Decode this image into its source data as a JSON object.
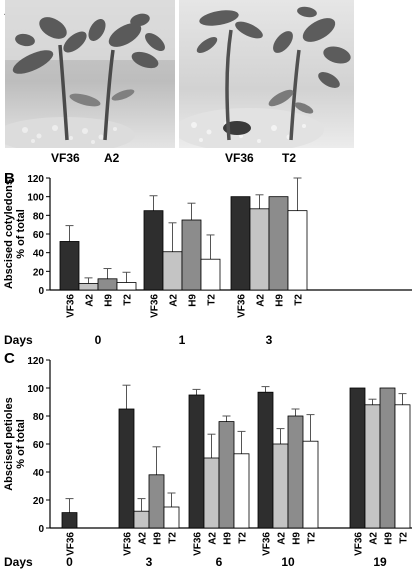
{
  "panels": {
    "A": {
      "letter": "A",
      "left_photo_labels": [
        "VF36",
        "A2"
      ],
      "right_photo_labels": [
        "VF36",
        "T2"
      ]
    },
    "B": {
      "letter": "B"
    },
    "C": {
      "letter": "C"
    }
  },
  "colors": {
    "VF36": "#2e2e2e",
    "A2": "#c4c4c4",
    "H9": "#8c8c8c",
    "T2": "#ffffff"
  },
  "chart_data": [
    {
      "type": "bar",
      "panel": "B",
      "ylabel": [
        "Abscised cotyledons",
        "% of total"
      ],
      "ylim": [
        0,
        120
      ],
      "yticks": [
        0,
        20,
        40,
        60,
        80,
        100,
        120
      ],
      "xlabel_prefix": "Days",
      "groups": [
        {
          "day": "0",
          "bars": [
            {
              "label": "VF36",
              "value": 52,
              "error": 17
            },
            {
              "label": "A2",
              "value": 7,
              "error": 6
            },
            {
              "label": "H9",
              "value": 12,
              "error": 11
            },
            {
              "label": "T2",
              "value": 8,
              "error": 11
            }
          ]
        },
        {
          "day": "1",
          "bars": [
            {
              "label": "VF36",
              "value": 85,
              "error": 16
            },
            {
              "label": "A2",
              "value": 41,
              "error": 31
            },
            {
              "label": "H9",
              "value": 75,
              "error": 18
            },
            {
              "label": "T2",
              "value": 33,
              "error": 26
            }
          ]
        },
        {
          "day": "3",
          "bars": [
            {
              "label": "VF36",
              "value": 100,
              "error": 0
            },
            {
              "label": "A2",
              "value": 87,
              "error": 15
            },
            {
              "label": "H9",
              "value": 100,
              "error": 0
            },
            {
              "label": "T2",
              "value": 85,
              "error": 35
            }
          ]
        }
      ]
    },
    {
      "type": "bar",
      "panel": "C",
      "ylabel": [
        "Abscised petioles",
        "% of total"
      ],
      "ylim": [
        0,
        120
      ],
      "yticks": [
        0,
        20,
        40,
        60,
        80,
        100,
        120
      ],
      "xlabel_prefix": "Days",
      "groups": [
        {
          "day": "0",
          "bars": [
            {
              "label": "VF36",
              "value": 11,
              "error": 10
            }
          ]
        },
        {
          "day": "3",
          "bars": [
            {
              "label": "VF36",
              "value": 85,
              "error": 17
            },
            {
              "label": "A2",
              "value": 12,
              "error": 9
            },
            {
              "label": "H9",
              "value": 38,
              "error": 20
            },
            {
              "label": "T2",
              "value": 15,
              "error": 10
            }
          ]
        },
        {
          "day": "6",
          "bars": [
            {
              "label": "VF36",
              "value": 95,
              "error": 4
            },
            {
              "label": "A2",
              "value": 50,
              "error": 17
            },
            {
              "label": "H9",
              "value": 76,
              "error": 4
            },
            {
              "label": "T2",
              "value": 53,
              "error": 16
            }
          ]
        },
        {
          "day": "10",
          "bars": [
            {
              "label": "VF36",
              "value": 97,
              "error": 4
            },
            {
              "label": "A2",
              "value": 60,
              "error": 11
            },
            {
              "label": "H9",
              "value": 80,
              "error": 5
            },
            {
              "label": "T2",
              "value": 62,
              "error": 19
            }
          ]
        },
        {
          "day": "19",
          "bars": [
            {
              "label": "VF36",
              "value": 100,
              "error": 0
            },
            {
              "label": "A2",
              "value": 88,
              "error": 4
            },
            {
              "label": "H9",
              "value": 100,
              "error": 0
            },
            {
              "label": "T2",
              "value": 88,
              "error": 8
            }
          ]
        }
      ]
    }
  ]
}
